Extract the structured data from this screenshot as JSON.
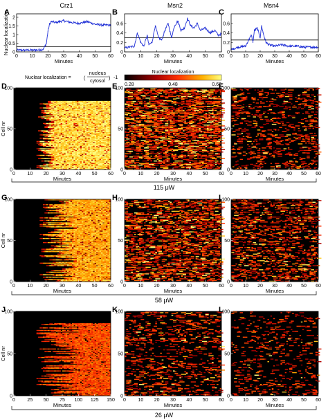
{
  "figure": {
    "column_titles": [
      "Crz1",
      "Msn2",
      "Msn4"
    ],
    "formula": {
      "prefix": "Nuclear localization = ",
      "numerator": "nucleus",
      "denominator": "cytosol",
      "suffix": "-1"
    },
    "colorbar": {
      "title": "Nuclear localization",
      "ticks": [
        "0.28",
        "0.48",
        "0.68"
      ]
    },
    "conditions": [
      "115 μW",
      "58 μW",
      "26 μW"
    ]
  },
  "chart_data": [
    {
      "panel": "A",
      "type": "line",
      "title": "Crz1",
      "xlabel": "Minutes",
      "ylabel": "Nuclear localization",
      "xlim": [
        0,
        60
      ],
      "ylim": [
        0,
        2.2
      ],
      "xticks": [
        0,
        10,
        20,
        30,
        40,
        50,
        60
      ],
      "yticks": [
        0,
        0.5,
        1,
        1.5,
        2
      ],
      "threshold": 0.3,
      "x": [
        0,
        5,
        10,
        15,
        17,
        19,
        20,
        21,
        22,
        25,
        30,
        35,
        40,
        45,
        50,
        55,
        60
      ],
      "y": [
        0.1,
        0.1,
        0.1,
        0.12,
        0.15,
        0.5,
        1.2,
        1.6,
        1.75,
        1.7,
        1.8,
        1.7,
        1.65,
        1.75,
        1.6,
        1.55,
        1.55
      ]
    },
    {
      "panel": "B",
      "type": "line",
      "title": "Msn2",
      "xlabel": "Minutes",
      "ylabel": "",
      "xlim": [
        0,
        60
      ],
      "ylim": [
        0,
        0.8
      ],
      "xticks": [
        0,
        10,
        20,
        30,
        40,
        50,
        60
      ],
      "yticks": [
        0,
        0.2,
        0.4,
        0.6
      ],
      "threshold": 0.3,
      "x": [
        0,
        3,
        6,
        8,
        10,
        12,
        14,
        15,
        17,
        19,
        21,
        23,
        25,
        27,
        29,
        31,
        33,
        35,
        37,
        39,
        41,
        43,
        45,
        47,
        50,
        53,
        56,
        58,
        60
      ],
      "y": [
        0.08,
        0.1,
        0.12,
        0.4,
        0.2,
        0.12,
        0.35,
        0.15,
        0.2,
        0.55,
        0.3,
        0.25,
        0.45,
        0.6,
        0.3,
        0.55,
        0.65,
        0.45,
        0.5,
        0.7,
        0.55,
        0.5,
        0.6,
        0.45,
        0.5,
        0.4,
        0.45,
        0.35,
        0.38
      ]
    },
    {
      "panel": "C",
      "type": "line",
      "title": "Msn4",
      "xlabel": "Minutes",
      "ylabel": "",
      "xlim": [
        0,
        60
      ],
      "ylim": [
        0,
        0.8
      ],
      "xticks": [
        0,
        10,
        20,
        30,
        40,
        50,
        60
      ],
      "yticks": [
        0,
        0.2,
        0.4,
        0.6
      ],
      "threshold": 0.25,
      "x": [
        0,
        5,
        10,
        12,
        14,
        15,
        16,
        18,
        20,
        21,
        22,
        24,
        26,
        30,
        35,
        40,
        45,
        50,
        55,
        60
      ],
      "y": [
        0.05,
        0.1,
        0.12,
        0.25,
        0.35,
        0.2,
        0.45,
        0.5,
        0.3,
        0.55,
        0.4,
        0.2,
        0.15,
        0.12,
        0.15,
        0.12,
        0.12,
        0.1,
        0.1,
        0.1
      ]
    },
    {
      "panel": "D",
      "type": "heatmap",
      "variant": "crz",
      "ylabel": "Cell nr",
      "xlabel": "Minutes",
      "xlim": [
        0,
        60
      ],
      "ylim": [
        0,
        100
      ],
      "xticks": [
        0,
        10,
        20,
        30,
        40,
        50,
        60
      ],
      "yticks": [
        0,
        50,
        100
      ],
      "cells": 84,
      "onset": [
        16,
        26
      ],
      "intensity": 0.92
    },
    {
      "panel": "E",
      "type": "heatmap",
      "variant": "msn",
      "ylabel": "",
      "xlabel": "Minutes",
      "xlim": [
        0,
        60
      ],
      "ylim": [
        0,
        100
      ],
      "xticks": [
        0,
        10,
        20,
        30,
        40,
        50,
        60
      ],
      "yticks": [
        0,
        50,
        100
      ],
      "cells": 100,
      "density": 0.6
    },
    {
      "panel": "F",
      "type": "heatmap",
      "variant": "msn",
      "ylabel": "",
      "xlabel": "Minutes",
      "xlim": [
        0,
        60
      ],
      "ylim": [
        0,
        100
      ],
      "xticks": [
        0,
        10,
        20,
        30,
        40,
        50,
        60
      ],
      "yticks": [
        0,
        50,
        100
      ],
      "cells": 100,
      "density": 0.2
    },
    {
      "panel": "G",
      "type": "heatmap",
      "variant": "crz",
      "ylabel": "Cell nr",
      "xlabel": "Minutes",
      "xlim": [
        0,
        60
      ],
      "ylim": [
        0,
        100
      ],
      "xticks": [
        0,
        10,
        20,
        30,
        40,
        50,
        60
      ],
      "yticks": [
        0,
        50,
        100
      ],
      "cells": 100,
      "onset": [
        18,
        40
      ],
      "intensity": 0.8
    },
    {
      "panel": "H",
      "type": "heatmap",
      "variant": "msn",
      "ylabel": "",
      "xlabel": "Minutes",
      "xlim": [
        0,
        60
      ],
      "ylim": [
        0,
        100
      ],
      "xticks": [
        0,
        10,
        20,
        30,
        40,
        50,
        60
      ],
      "yticks": [
        0,
        50,
        100
      ],
      "cells": 100,
      "density": 0.5
    },
    {
      "panel": "I",
      "type": "heatmap",
      "variant": "msn",
      "ylabel": "",
      "xlabel": "Minutes",
      "xlim": [
        0,
        60
      ],
      "ylim": [
        0,
        100
      ],
      "xticks": [
        0,
        10,
        20,
        30,
        40,
        50,
        60
      ],
      "yticks": [
        0,
        50,
        100
      ],
      "cells": 100,
      "density": 0.3
    },
    {
      "panel": "J",
      "type": "heatmap",
      "variant": "crz",
      "ylabel": "Cell nr",
      "xlabel": "Minutes",
      "xlim": [
        0,
        150
      ],
      "ylim": [
        0,
        100
      ],
      "xticks": [
        0,
        25,
        50,
        75,
        100,
        125,
        150
      ],
      "yticks": [
        0,
        50,
        100
      ],
      "cells": 86,
      "onset": [
        40,
        110
      ],
      "intensity": 0.6
    },
    {
      "panel": "K",
      "type": "heatmap",
      "variant": "msn",
      "ylabel": "",
      "xlabel": "Minutes",
      "xlim": [
        0,
        60
      ],
      "ylim": [
        0,
        100
      ],
      "xticks": [
        0,
        10,
        20,
        30,
        40,
        50,
        60
      ],
      "yticks": [
        0,
        50,
        100
      ],
      "cells": 100,
      "density": 0.22
    },
    {
      "panel": "L",
      "type": "heatmap",
      "variant": "msn",
      "ylabel": "",
      "xlabel": "Minutes",
      "xlim": [
        0,
        60
      ],
      "ylim": [
        0,
        100
      ],
      "xticks": [
        0,
        10,
        20,
        30,
        40,
        50,
        60
      ],
      "yticks": [
        0,
        50,
        100
      ],
      "cells": 100,
      "density": 0.12
    }
  ]
}
